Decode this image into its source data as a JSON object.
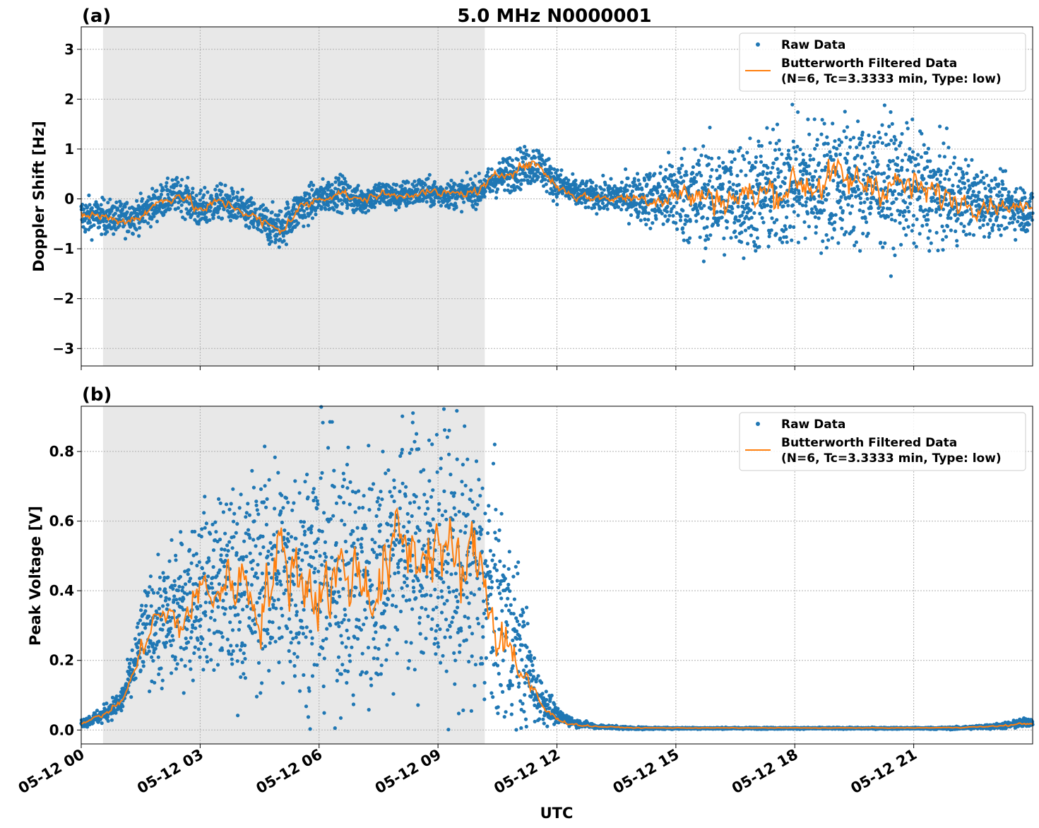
{
  "figure": {
    "title": "5.0 MHz N0000001",
    "xlabel": "UTC",
    "x_ticks": [
      "05-12 00",
      "05-12 03",
      "05-12 06",
      "05-12 09",
      "05-12 12",
      "05-12 15",
      "05-12 18",
      "05-12 21"
    ]
  },
  "chart_data": [
    {
      "type": "scatter",
      "panel_label": "(a)",
      "title": "5.0 MHz N0000001",
      "ylabel": "Doppler Shift [Hz]",
      "xlim_hours": [
        0,
        24
      ],
      "ylim": [
        -3.35,
        3.45
      ],
      "y_ticks": [
        -3,
        -2,
        -1,
        0,
        1,
        2,
        3
      ],
      "y_tick_labels": [
        "−3",
        "−2",
        "−1",
        "0",
        "1",
        "2",
        "3"
      ],
      "shaded_region_hours": [
        0.55,
        10.18
      ],
      "grid": true,
      "legend_position": "upper right",
      "series": [
        {
          "name": "Raw Data",
          "kind": "scatter",
          "color": "#1f77b4",
          "x_hours": [
            0,
            0.5,
            1,
            1.5,
            2,
            2.5,
            3,
            3.5,
            4,
            4.5,
            5,
            5.5,
            6,
            6.5,
            7,
            7.5,
            8,
            8.5,
            9,
            9.5,
            10,
            10.5,
            11,
            11.5,
            12,
            12.5,
            13,
            13.5,
            14,
            14.5,
            15,
            15.5,
            16,
            16.5,
            17,
            17.5,
            18,
            18.5,
            19,
            19.5,
            20,
            20.5,
            21,
            21.5,
            22,
            22.5,
            23,
            23.5,
            24
          ],
          "center": [
            -0.35,
            -0.35,
            -0.4,
            -0.3,
            -0.05,
            0.1,
            -0.25,
            -0.05,
            -0.2,
            -0.45,
            -0.6,
            -0.2,
            0.0,
            0.15,
            -0.05,
            0.1,
            0.05,
            0.15,
            0.1,
            0.1,
            0.15,
            0.4,
            0.6,
            0.7,
            0.3,
            0.1,
            0.05,
            0.05,
            0.05,
            0.0,
            0.1,
            0.05,
            0.0,
            0.05,
            0.05,
            0.15,
            0.3,
            0.3,
            0.35,
            0.3,
            0.35,
            0.3,
            0.2,
            0.1,
            0.0,
            0.0,
            -0.1,
            -0.15,
            -0.25
          ],
          "spread": [
            0.35,
            0.3,
            0.3,
            0.3,
            0.3,
            0.3,
            0.35,
            0.3,
            0.3,
            0.35,
            0.35,
            0.35,
            0.3,
            0.3,
            0.25,
            0.25,
            0.25,
            0.25,
            0.25,
            0.25,
            0.25,
            0.3,
            0.35,
            0.35,
            0.3,
            0.25,
            0.25,
            0.3,
            0.4,
            0.55,
            0.8,
            0.9,
            0.95,
            1.0,
            1.05,
            1.1,
            1.1,
            1.15,
            1.15,
            1.15,
            1.15,
            1.1,
            1.0,
            0.9,
            0.8,
            0.65,
            0.5,
            0.45,
            0.4
          ]
        },
        {
          "name": "Butterworth Filtered Data\n(N=6, Tc=3.3333 min, Type: low)",
          "kind": "line",
          "color": "#ff7f0e",
          "x_hours": [
            0,
            0.5,
            1,
            1.5,
            2,
            2.5,
            3,
            3.5,
            4,
            4.5,
            5,
            5.5,
            6,
            6.5,
            7,
            7.5,
            8,
            8.5,
            9,
            9.5,
            10,
            10.5,
            11,
            11.5,
            12,
            12.5,
            13,
            13.5,
            14,
            14.5,
            15,
            15.5,
            16,
            16.5,
            17,
            17.5,
            18,
            18.5,
            19,
            19.5,
            20,
            20.5,
            21,
            21.5,
            22,
            22.5,
            23,
            23.5,
            24
          ],
          "y": [
            -0.3,
            -0.35,
            -0.45,
            -0.35,
            -0.05,
            0.1,
            -0.25,
            -0.05,
            -0.2,
            -0.45,
            -0.65,
            -0.2,
            0.0,
            0.15,
            -0.05,
            0.1,
            0.05,
            0.15,
            0.1,
            0.1,
            0.15,
            0.45,
            0.65,
            0.7,
            0.25,
            0.05,
            0.02,
            0.02,
            0.02,
            0.0,
            0.1,
            0.05,
            0.0,
            0.05,
            0.05,
            0.15,
            0.35,
            0.3,
            0.4,
            0.3,
            0.35,
            0.3,
            0.2,
            0.1,
            0.0,
            -0.05,
            -0.1,
            -0.15,
            -0.2
          ]
        }
      ]
    },
    {
      "type": "scatter",
      "panel_label": "(b)",
      "ylabel": "Peak Voltage [V]",
      "xlim_hours": [
        0,
        24
      ],
      "ylim": [
        -0.04,
        0.93
      ],
      "y_ticks": [
        0.0,
        0.2,
        0.4,
        0.6,
        0.8
      ],
      "y_tick_labels": [
        "0.0",
        "0.2",
        "0.4",
        "0.6",
        "0.8"
      ],
      "shaded_region_hours": [
        0.55,
        10.18
      ],
      "grid": true,
      "legend_position": "upper right",
      "series": [
        {
          "name": "Raw Data",
          "kind": "scatter",
          "color": "#1f77b4",
          "x_hours": [
            0,
            0.5,
            1,
            1.25,
            1.5,
            1.75,
            2,
            2.5,
            3,
            3.5,
            4,
            4.5,
            5,
            5.5,
            6,
            6.5,
            7,
            7.5,
            8,
            8.5,
            9,
            9.5,
            10,
            10.5,
            11,
            11.5,
            12,
            12.5,
            13,
            14,
            15,
            16,
            17,
            18,
            19,
            20,
            21,
            22,
            23,
            23.5,
            24
          ],
          "center": [
            0.02,
            0.04,
            0.08,
            0.15,
            0.25,
            0.3,
            0.3,
            0.35,
            0.4,
            0.42,
            0.4,
            0.45,
            0.45,
            0.45,
            0.45,
            0.45,
            0.42,
            0.45,
            0.55,
            0.5,
            0.5,
            0.45,
            0.45,
            0.35,
            0.25,
            0.1,
            0.04,
            0.02,
            0.01,
            0.005,
            0.005,
            0.005,
            0.005,
            0.005,
            0.005,
            0.005,
            0.005,
            0.005,
            0.01,
            0.015,
            0.025
          ],
          "spread": [
            0.01,
            0.02,
            0.03,
            0.06,
            0.1,
            0.13,
            0.15,
            0.18,
            0.2,
            0.22,
            0.25,
            0.28,
            0.3,
            0.3,
            0.32,
            0.32,
            0.32,
            0.33,
            0.3,
            0.33,
            0.33,
            0.33,
            0.33,
            0.3,
            0.2,
            0.07,
            0.02,
            0.01,
            0.005,
            0.003,
            0.002,
            0.002,
            0.002,
            0.002,
            0.002,
            0.002,
            0.002,
            0.003,
            0.006,
            0.01,
            0.012
          ]
        },
        {
          "name": "Butterworth Filtered Data\n(N=6, Tc=3.3333 min, Type: low)",
          "kind": "line",
          "color": "#ff7f0e",
          "x_hours": [
            0,
            0.5,
            1,
            1.25,
            1.5,
            1.75,
            2,
            2.5,
            3,
            3.5,
            4,
            4.5,
            5,
            5.5,
            6,
            6.5,
            7,
            7.5,
            8,
            8.5,
            9,
            9.5,
            10,
            10.5,
            11,
            11.5,
            12,
            12.5,
            13,
            14,
            15,
            16,
            17,
            18,
            19,
            20,
            21,
            22,
            23,
            23.5,
            24
          ],
          "y": [
            0.02,
            0.04,
            0.08,
            0.14,
            0.22,
            0.3,
            0.33,
            0.3,
            0.4,
            0.4,
            0.45,
            0.35,
            0.5,
            0.45,
            0.4,
            0.45,
            0.45,
            0.4,
            0.55,
            0.5,
            0.55,
            0.45,
            0.5,
            0.3,
            0.2,
            0.08,
            0.03,
            0.015,
            0.01,
            0.006,
            0.006,
            0.006,
            0.006,
            0.006,
            0.006,
            0.006,
            0.006,
            0.007,
            0.01,
            0.015,
            0.02
          ]
        }
      ]
    }
  ]
}
